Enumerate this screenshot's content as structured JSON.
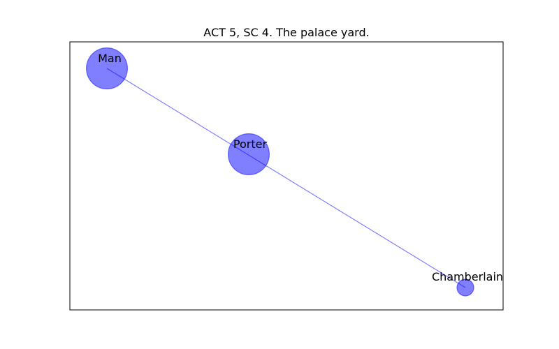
{
  "title": "ACT 5, SC 4. The palace yard.",
  "graph": {
    "node_color": "#0000ff",
    "edge_color": "#0000ff",
    "nodes": [
      {
        "id": "man",
        "label": "Man",
        "weight": 3
      },
      {
        "id": "porter",
        "label": "Porter",
        "weight": 3
      },
      {
        "id": "chamberlain",
        "label": "Chamberlain",
        "weight": 0.5
      }
    ],
    "edges": [
      {
        "source": "man",
        "target": "chamberlain"
      }
    ]
  }
}
